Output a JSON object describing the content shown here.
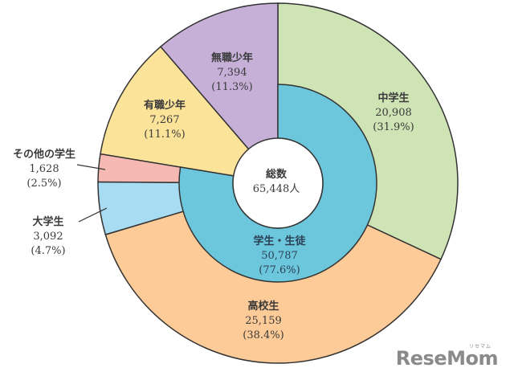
{
  "chart_data": {
    "type": "pie",
    "subtype": "nested-donut",
    "title": "",
    "center": {
      "label": "総数",
      "value": "65,448人",
      "total": 65448
    },
    "outer_ring": [
      {
        "name": "中学生",
        "value": 20908,
        "value_label": "20,908",
        "percent": 31.9,
        "percent_label": "(31.9%)",
        "color": "#CFE4B5"
      },
      {
        "name": "高校生",
        "value": 25159,
        "value_label": "25,159",
        "percent": 38.4,
        "percent_label": "(38.4%)",
        "color": "#FDCB97"
      },
      {
        "name": "大学生",
        "value": 3092,
        "value_label": "3,092",
        "percent": 4.7,
        "percent_label": "(4.7%)",
        "color": "#A8DCF3"
      },
      {
        "name": "その他の学生",
        "value": 1628,
        "value_label": "1,628",
        "percent": 2.5,
        "percent_label": "(2.5%)",
        "color": "#F6B8B2"
      },
      {
        "name": "有職少年",
        "value": 7267,
        "value_label": "7,267",
        "percent": 11.1,
        "percent_label": "(11.1%)",
        "color": "#FCE39A"
      },
      {
        "name": "無職少年",
        "value": 7394,
        "value_label": "7,394",
        "percent": 11.3,
        "percent_label": "(11.3%)",
        "color": "#C6B0D8"
      }
    ],
    "inner_ring": [
      {
        "name": "学生・生徒",
        "value": 50787,
        "value_label": "50,787",
        "percent": 77.6,
        "percent_label": "(77.6%)",
        "color": "#6CC7DD"
      }
    ],
    "start_angle": "12 o'clock",
    "direction": "clockwise"
  },
  "watermark": {
    "text": "ReseMom",
    "ruby": "リセマム"
  }
}
